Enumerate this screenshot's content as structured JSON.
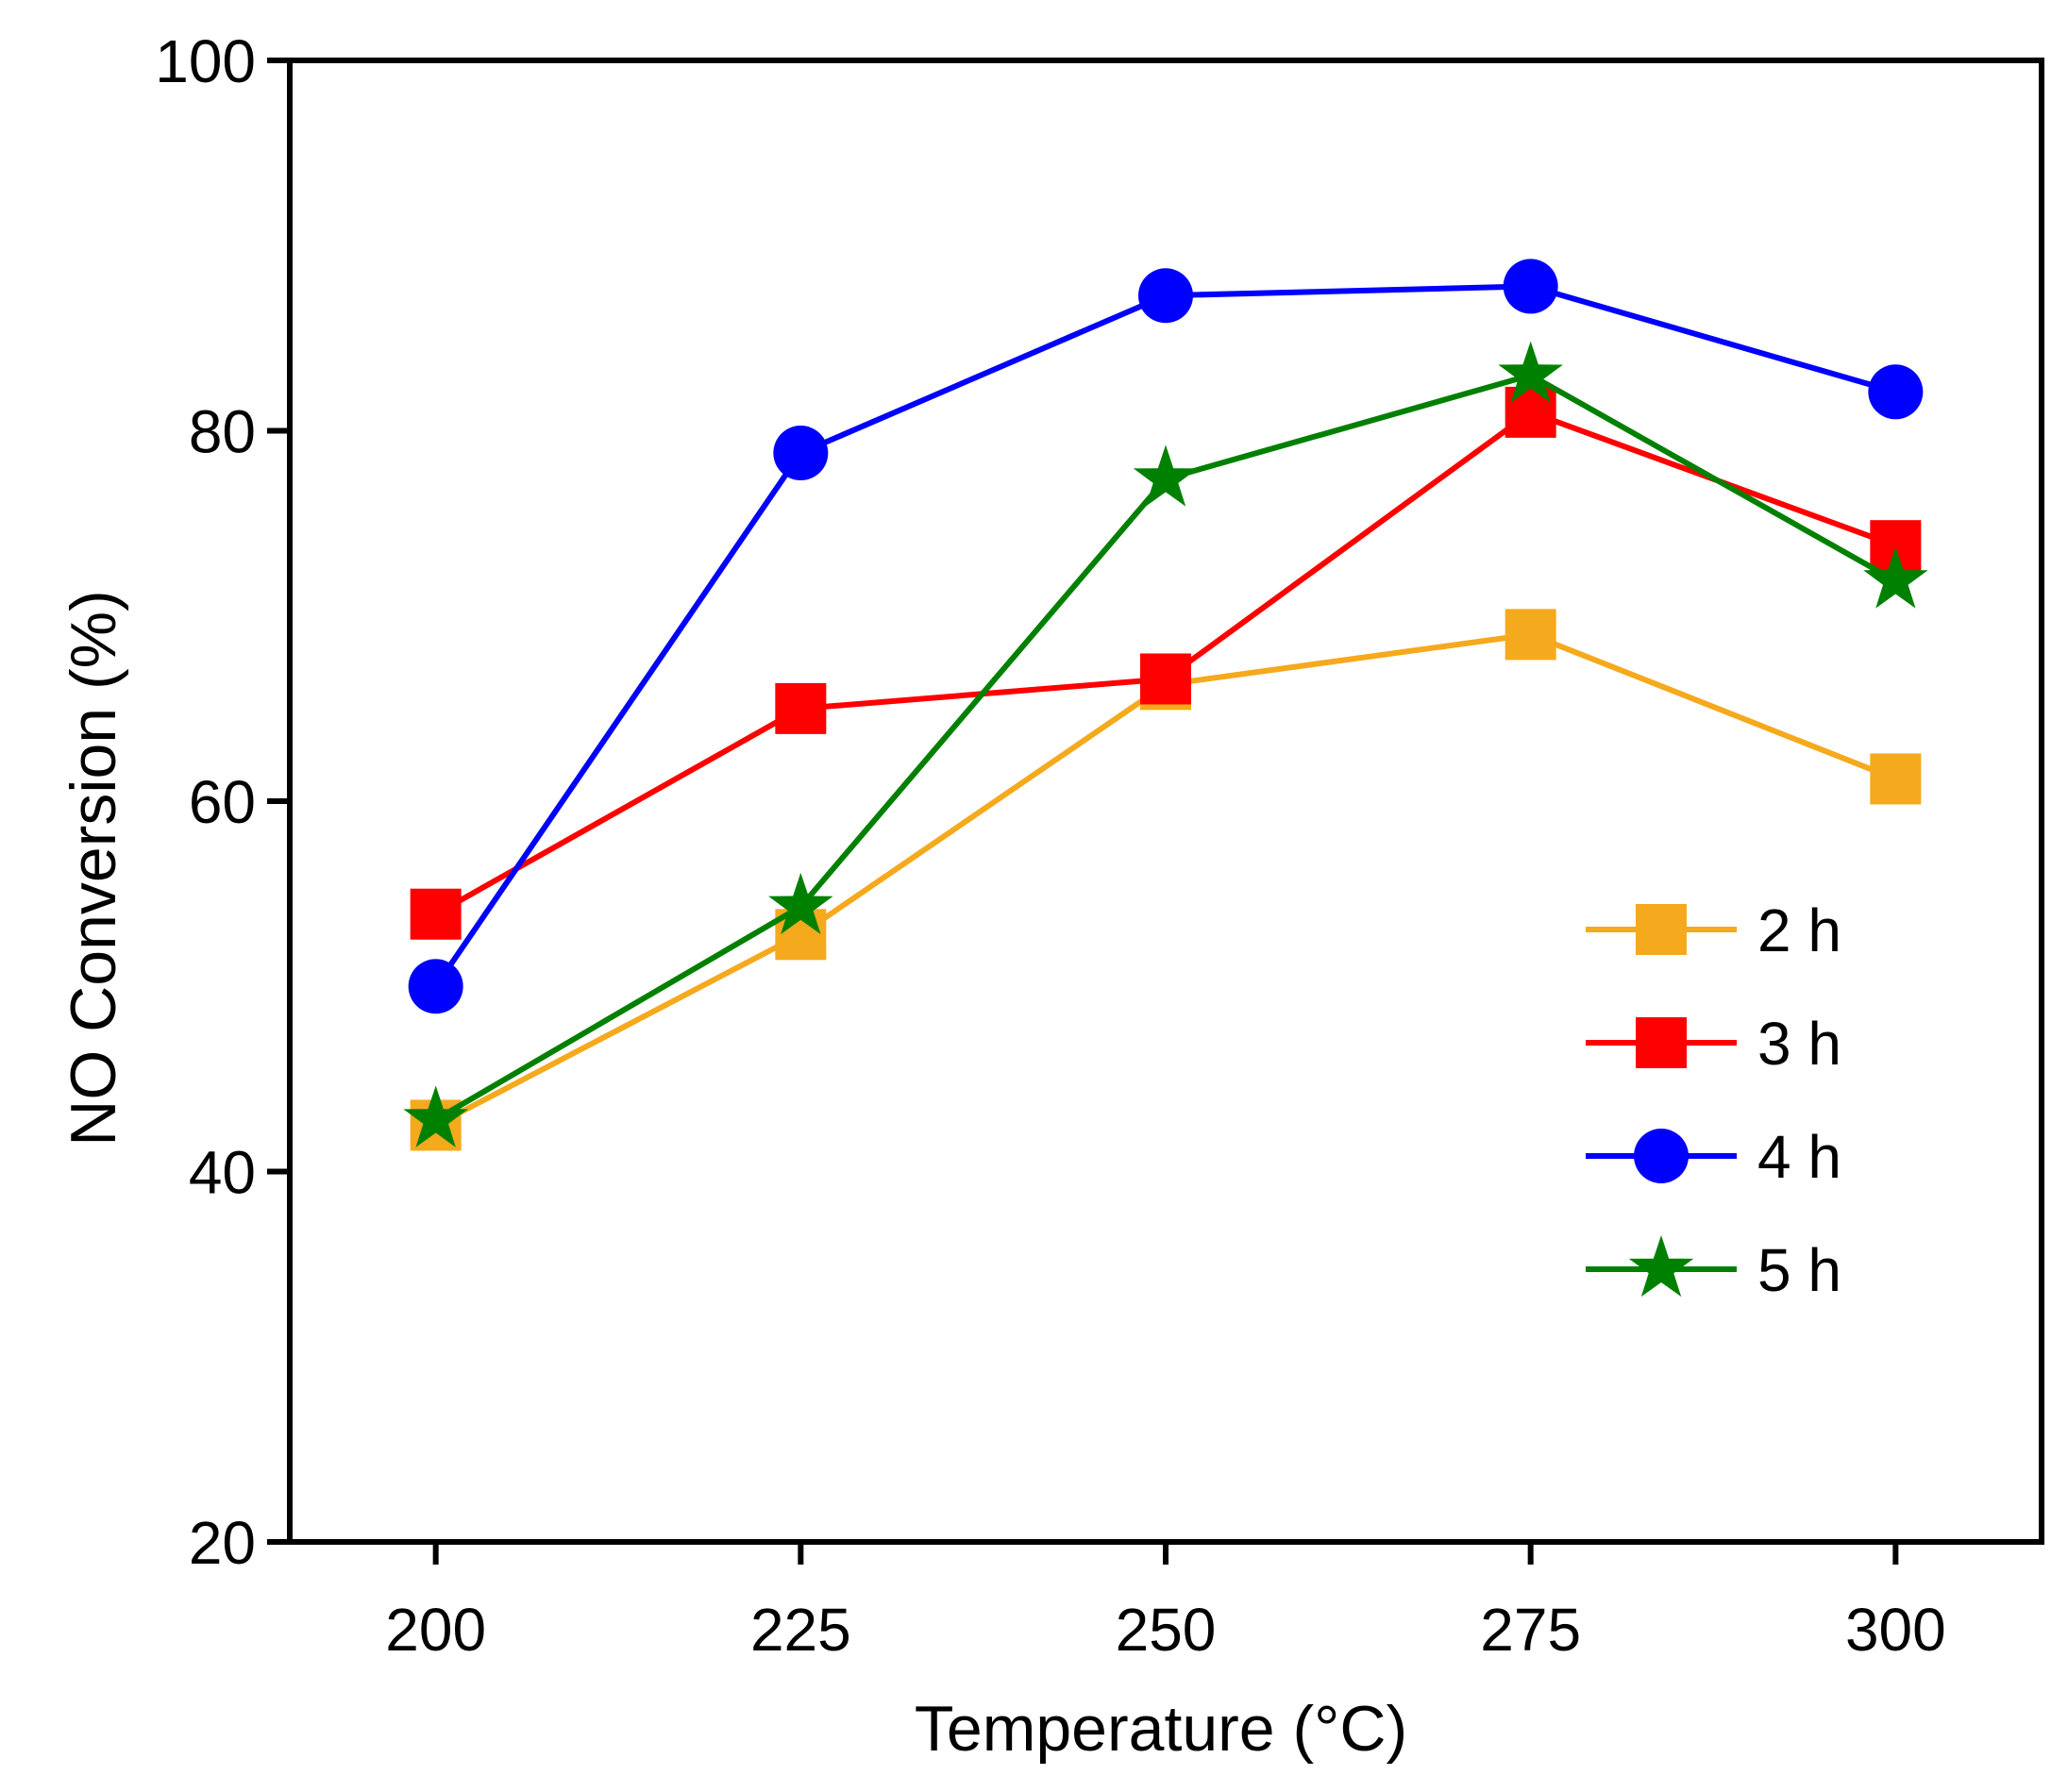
{
  "chart_data": {
    "type": "line",
    "title": "",
    "xlabel": "Temperature (°C)",
    "ylabel": "NO Conversion (%)",
    "x": [
      200,
      225,
      250,
      275,
      300
    ],
    "xlim": [
      190,
      310
    ],
    "ylim": [
      20,
      100
    ],
    "xticks": [
      200,
      225,
      250,
      275,
      300
    ],
    "yticks": [
      20,
      40,
      60,
      80,
      100
    ],
    "grid": false,
    "legend_position": "right",
    "series": [
      {
        "name": "2 h",
        "color": "#F5A91C",
        "marker": "square",
        "values": [
          42.5,
          52.8,
          66.3,
          69.0,
          61.2
        ]
      },
      {
        "name": "3 h",
        "color": "#FF0000",
        "marker": "square",
        "values": [
          53.9,
          65.0,
          66.6,
          81.0,
          73.8
        ]
      },
      {
        "name": "4 h",
        "color": "#0000FF",
        "marker": "circle",
        "values": [
          50.0,
          78.8,
          87.3,
          87.8,
          82.1
        ]
      },
      {
        "name": "5 h",
        "color": "#008000",
        "marker": "star",
        "values": [
          42.8,
          54.3,
          77.4,
          83.0,
          71.9
        ]
      }
    ]
  }
}
